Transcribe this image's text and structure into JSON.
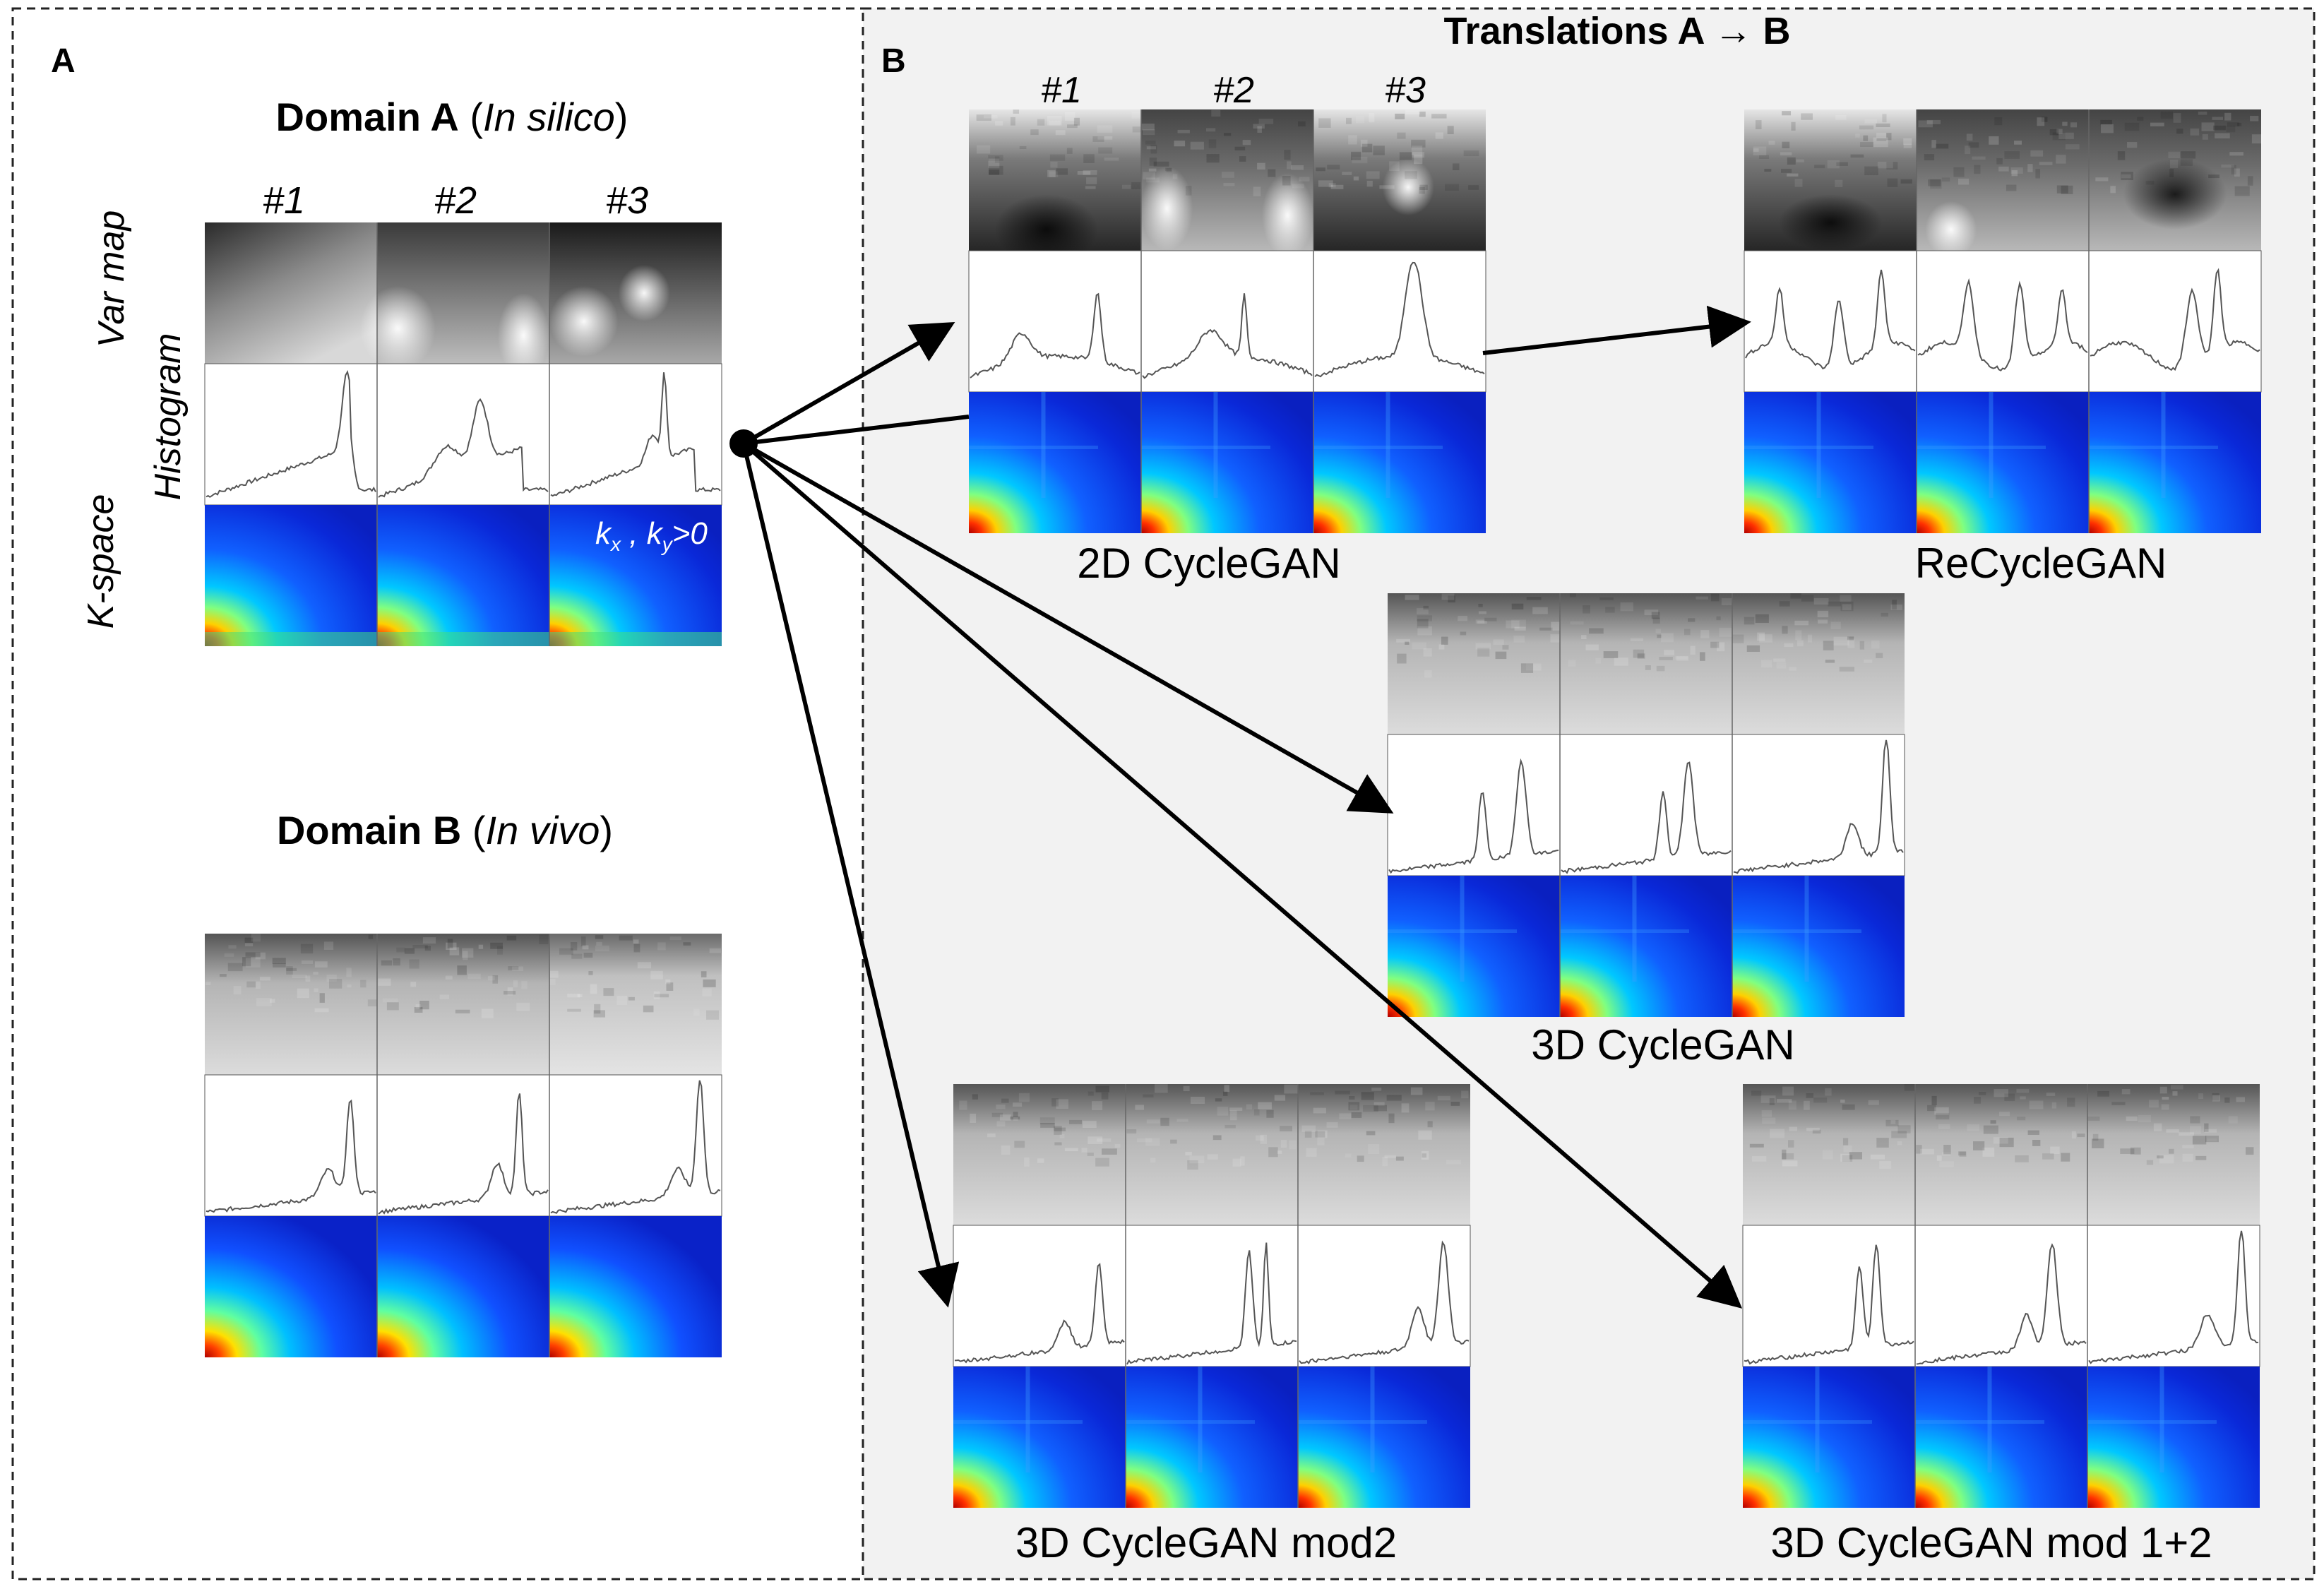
{
  "panel_a": {
    "letter": "A",
    "domain_a": {
      "bold": "Domain A",
      "open": " (",
      "italic": "In silico",
      "close": ")"
    },
    "domain_b": {
      "bold": "Domain B",
      "open": " (",
      "italic": "In vivo",
      "close": ")"
    },
    "columns": [
      "#1",
      "#2",
      "#3"
    ],
    "row_labels": [
      "Var map",
      "Histogram",
      "K-space"
    ],
    "kspace_note": {
      "k": "k",
      "x": "x",
      "sep": " , ",
      "y": "y",
      "cond": ">0"
    }
  },
  "panel_b": {
    "letter": "B",
    "title": "Translations A → B",
    "columns": [
      "#1",
      "#2",
      "#3"
    ],
    "models": [
      {
        "key": "cg2d",
        "label": "2D CycleGAN"
      },
      {
        "key": "recycle",
        "label": "ReCycleGAN"
      },
      {
        "key": "cg3d",
        "label": "3D CycleGAN"
      },
      {
        "key": "mod2",
        "label": "3D CycleGAN mod2"
      },
      {
        "key": "mod12",
        "label": "3D CycleGAN mod 1+2"
      }
    ]
  },
  "colors": {
    "panel_b_background": "#f2f2f2",
    "border": "#222222",
    "arrow": "#000000",
    "histogram_line": "#555555",
    "kspace_colormap": "jet"
  }
}
